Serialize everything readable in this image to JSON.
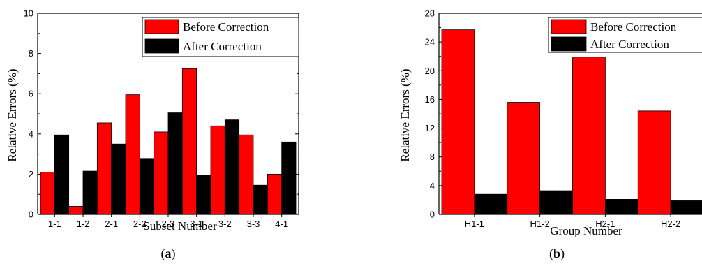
{
  "chart_data": [
    {
      "type": "bar",
      "caption_open": "(",
      "caption_letter": "a",
      "caption_close": ")",
      "xlabel": "Subset Number",
      "ylabel": "Relative Errors (%)",
      "ylim": [
        0,
        10
      ],
      "yticks": [
        "0",
        "2",
        "4",
        "6",
        "8",
        "10"
      ],
      "categories": [
        "1-1",
        "1-2",
        "2-1",
        "2-2",
        "2-3",
        "3-1",
        "3-2",
        "3-3",
        "4-1"
      ],
      "series": [
        {
          "name": "Before Correction",
          "color": "#ff0000",
          "values": [
            2.1,
            0.4,
            4.55,
            5.95,
            4.1,
            7.25,
            4.4,
            3.95,
            2.0
          ]
        },
        {
          "name": "After Correction",
          "color": "#000000",
          "values": [
            3.95,
            2.15,
            3.5,
            2.75,
            5.05,
            1.95,
            4.7,
            1.45,
            3.6
          ]
        }
      ],
      "legend_position": "top-right"
    },
    {
      "type": "bar",
      "caption_open": "(",
      "caption_letter": "b",
      "caption_close": ")",
      "xlabel": "Group Number",
      "ylabel": "Relative Errors (%)",
      "ylim": [
        0,
        28
      ],
      "yticks": [
        "0",
        "4",
        "8",
        "12",
        "16",
        "20",
        "24",
        "28"
      ],
      "categories": [
        "H1-1",
        "H1-2",
        "H2-1",
        "H2-2"
      ],
      "series": [
        {
          "name": "Before Correction",
          "color": "#ff0000",
          "values": [
            25.7,
            15.6,
            21.9,
            14.4
          ]
        },
        {
          "name": "After Correction",
          "color": "#000000",
          "values": [
            2.8,
            3.3,
            2.1,
            1.9
          ]
        }
      ],
      "legend_position": "top-right"
    }
  ]
}
